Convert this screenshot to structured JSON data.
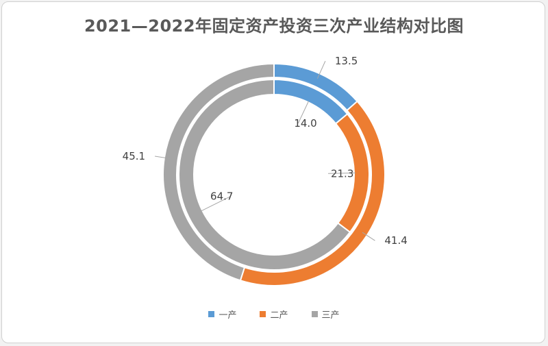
{
  "chart_data": {
    "type": "pie",
    "subtype": "double-donut",
    "title": "2021—2022年固定资产投资三次产业结构对比图",
    "categories": [
      "一产",
      "二产",
      "三产"
    ],
    "colors": [
      "#5b9bd5",
      "#ed7d31",
      "#a5a5a5"
    ],
    "series": [
      {
        "ring": "outer",
        "values": [
          13.5,
          41.4,
          45.1
        ],
        "labels": [
          "13.5",
          "41.4",
          "45.1"
        ]
      },
      {
        "ring": "inner",
        "values": [
          14.0,
          21.3,
          64.7
        ],
        "labels": [
          "14.0",
          "21.3",
          "64.7"
        ]
      }
    ],
    "legend_position": "bottom"
  }
}
